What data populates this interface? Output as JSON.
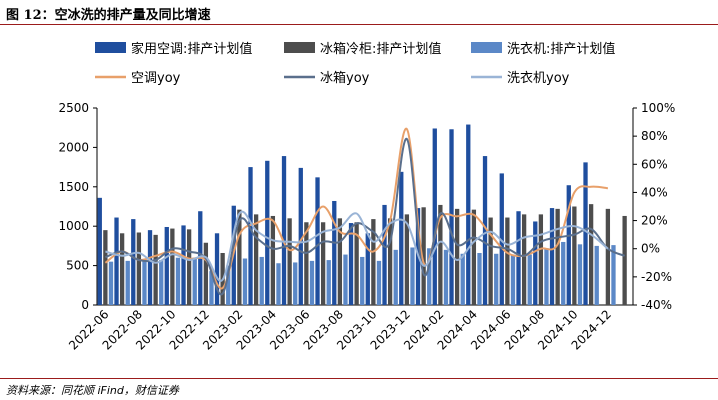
{
  "figure": {
    "title": "图 12：空冰洗的排产量及同比增速",
    "source": "资料来源：同花顺 iFind，财信证券"
  },
  "chart_data": {
    "type": "bar",
    "categories": [
      "2022-06",
      "2022-07",
      "2022-08",
      "2022-09",
      "2022-10",
      "2022-11",
      "2022-12",
      "2023-01",
      "2023-02",
      "2023-03",
      "2023-04",
      "2023-05",
      "2023-06",
      "2023-07",
      "2023-08",
      "2023-09",
      "2023-10",
      "2023-11",
      "2023-12",
      "2024-01",
      "2024-02",
      "2024-03",
      "2024-04",
      "2024-05",
      "2024-06",
      "2024-07",
      "2024-08",
      "2024-09",
      "2024-10",
      "2024-11",
      "2024-12",
      "2025-01"
    ],
    "tick_labels": [
      "2022-06",
      "2022-08",
      "2022-10",
      "2022-12",
      "2023-02",
      "2023-04",
      "2023-06",
      "2023-08",
      "2023-10",
      "2023-12",
      "2024-02",
      "2024-04",
      "2024-06",
      "2024-08",
      "2024-10",
      "2024-12"
    ],
    "series": [
      {
        "name": "家用空调:排产计划值",
        "kind": "bar",
        "axis": "left",
        "color": "#1f4e9e",
        "values": [
          1360,
          1110,
          1090,
          950,
          990,
          1010,
          1190,
          910,
          1260,
          1750,
          1830,
          1890,
          1740,
          1620,
          1320,
          1040,
          910,
          1270,
          1690,
          1230,
          2240,
          2230,
          2290,
          1890,
          1670,
          1190,
          1060,
          1230,
          1520,
          1810,
          null,
          null
        ]
      },
      {
        "name": "冰箱冷柜:排产计划值",
        "kind": "bar",
        "axis": "left",
        "color": "#4d4d4d",
        "values": [
          950,
          910,
          920,
          890,
          970,
          960,
          790,
          660,
          1210,
          1150,
          1130,
          1100,
          1050,
          1050,
          1100,
          1050,
          1090,
          1100,
          1150,
          1240,
          1270,
          1220,
          1210,
          1110,
          1110,
          1150,
          1150,
          1220,
          1250,
          1280,
          1220,
          1130
        ]
      },
      {
        "name": "洗衣机:排产计划值",
        "kind": "bar",
        "axis": "left",
        "color": "#5b88c7",
        "values": [
          550,
          560,
          580,
          570,
          600,
          600,
          430,
          500,
          590,
          610,
          530,
          540,
          560,
          570,
          640,
          610,
          560,
          700,
          730,
          720,
          700,
          650,
          660,
          650,
          640,
          640,
          720,
          800,
          770,
          750,
          760,
          null
        ]
      },
      {
        "name": "空调yoy",
        "kind": "line",
        "axis": "right",
        "color": "#e8a06a",
        "values": [
          -10,
          -2,
          -8,
          -5,
          -2,
          -7,
          -8,
          -28,
          10,
          18,
          20,
          -1,
          12,
          30,
          12,
          10,
          -2,
          20,
          85,
          -10,
          22,
          23,
          24,
          10,
          -3,
          -5,
          0,
          3,
          40,
          44,
          43,
          null
        ]
      },
      {
        "name": "冰箱yoy",
        "kind": "line",
        "axis": "right",
        "color": "#5a6f8c",
        "values": [
          -6,
          -2,
          -8,
          -8,
          0,
          -2,
          -7,
          -32,
          20,
          8,
          0,
          2,
          -3,
          5,
          5,
          18,
          12,
          5,
          78,
          -18,
          25,
          3,
          8,
          2,
          0,
          -5,
          5,
          8,
          10,
          14,
          0,
          -5
        ]
      },
      {
        "name": "洗衣机yoy",
        "kind": "line",
        "axis": "right",
        "color": "#9ab4d6",
        "values": [
          -2,
          -5,
          -3,
          -10,
          -4,
          -8,
          -6,
          -22,
          25,
          13,
          6,
          5,
          5,
          12,
          15,
          25,
          5,
          18,
          18,
          -12,
          5,
          -8,
          5,
          12,
          3,
          8,
          10,
          14,
          16,
          10,
          0,
          null
        ]
      }
    ],
    "ylim_left": [
      0,
      2500
    ],
    "yticks_left": [
      "0",
      "500",
      "1000",
      "1500",
      "2000",
      "2500"
    ],
    "ylim_right": [
      -40,
      100
    ],
    "yticks_right": [
      "-40%",
      "-20%",
      "0%",
      "20%",
      "40%",
      "60%",
      "80%",
      "100%"
    ],
    "legend_position": "top",
    "grid": false
  }
}
